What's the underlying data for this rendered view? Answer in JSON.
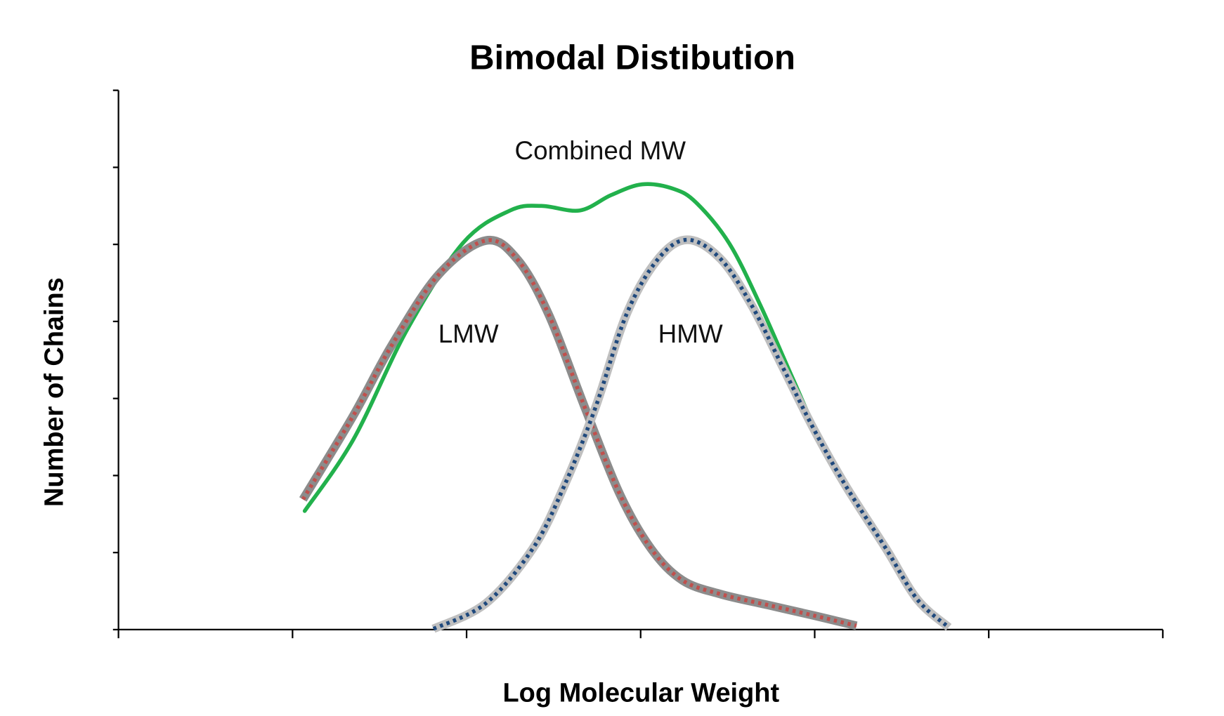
{
  "chart_data": {
    "type": "line",
    "title": "Bimodal Distibution",
    "xlabel": "Log Molecular Weight",
    "ylabel": "Number of Chains",
    "xlim": [
      0,
      6
    ],
    "ylim": [
      0,
      7
    ],
    "x_ticks_count": 7,
    "y_ticks_count": 8,
    "tick_labels_shown": false,
    "grid": false,
    "legend": "none",
    "annotations": [
      {
        "text": "Combined MW",
        "series": "combined"
      },
      {
        "text": "LMW",
        "series": "lmw"
      },
      {
        "text": "HMW",
        "series": "hmw"
      }
    ],
    "series": [
      {
        "id": "combined",
        "style": "solid",
        "color": "#22b14c",
        "points": [
          [
            1.07,
            1.54
          ],
          [
            1.35,
            2.47
          ],
          [
            1.66,
            3.9
          ],
          [
            1.98,
            5.02
          ],
          [
            2.25,
            5.44
          ],
          [
            2.43,
            5.5
          ],
          [
            2.65,
            5.44
          ],
          [
            2.83,
            5.64
          ],
          [
            3.01,
            5.78
          ],
          [
            3.19,
            5.72
          ],
          [
            3.32,
            5.54
          ],
          [
            3.51,
            5.01
          ],
          [
            3.69,
            4.2
          ],
          [
            3.87,
            3.28
          ],
          [
            4.05,
            2.37
          ],
          [
            4.16,
            1.97
          ]
        ]
      },
      {
        "id": "lmw",
        "style": "dotted",
        "color": "#c0504d",
        "outline_color": "#8c8c8c",
        "points": [
          [
            1.06,
            1.69
          ],
          [
            1.35,
            2.78
          ],
          [
            1.57,
            3.69
          ],
          [
            1.84,
            4.61
          ],
          [
            2.11,
            5.05
          ],
          [
            2.29,
            4.81
          ],
          [
            2.47,
            4.1
          ],
          [
            2.68,
            2.88
          ],
          [
            2.88,
            1.76
          ],
          [
            3.06,
            1.05
          ],
          [
            3.24,
            0.64
          ],
          [
            3.46,
            0.46
          ],
          [
            3.73,
            0.32
          ],
          [
            4.0,
            0.18
          ],
          [
            4.24,
            0.05
          ]
        ]
      },
      {
        "id": "hmw",
        "style": "dotted",
        "color": "#1f497d",
        "outline_color": "#bfbfbf",
        "points": [
          [
            1.81,
            0.01
          ],
          [
            2.11,
            0.34
          ],
          [
            2.38,
            1.05
          ],
          [
            2.56,
            1.86
          ],
          [
            2.74,
            2.88
          ],
          [
            2.92,
            4.1
          ],
          [
            3.1,
            4.81
          ],
          [
            3.27,
            5.06
          ],
          [
            3.46,
            4.81
          ],
          [
            3.64,
            4.2
          ],
          [
            3.82,
            3.39
          ],
          [
            4.0,
            2.58
          ],
          [
            4.18,
            1.86
          ],
          [
            4.41,
            1.05
          ],
          [
            4.59,
            0.39
          ],
          [
            4.77,
            0.03
          ]
        ]
      }
    ]
  }
}
